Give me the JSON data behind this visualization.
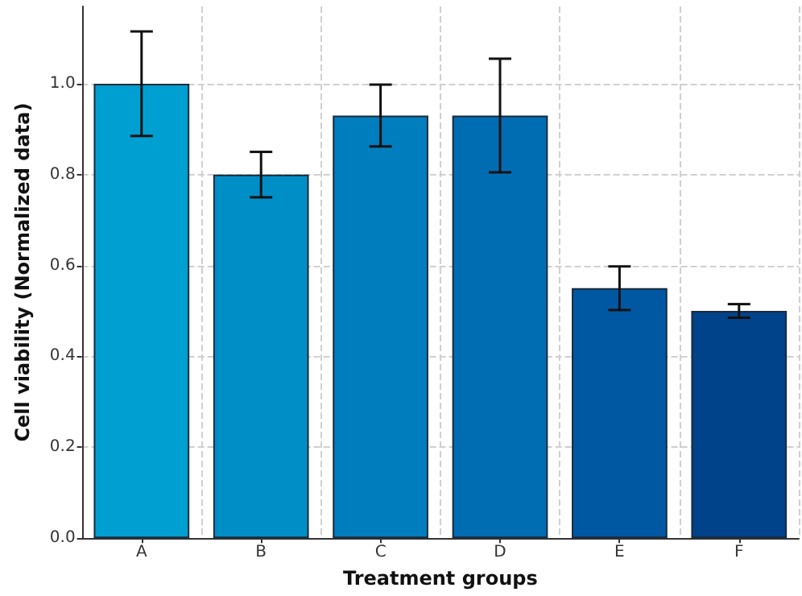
{
  "chart_data": {
    "type": "bar",
    "xlabel": "Treatment groups",
    "ylabel": "Cell viability (Normalized data)",
    "categories": [
      "A",
      "B",
      "C",
      "D",
      "E",
      "F"
    ],
    "values": [
      1.0,
      0.8,
      0.93,
      0.93,
      0.55,
      0.5
    ],
    "errors": [
      0.115,
      0.05,
      0.068,
      0.125,
      0.048,
      0.015
    ],
    "colors": [
      "#009fd1",
      "#008ec7",
      "#007dbd",
      "#006db3",
      "#0058a3",
      "#00438a"
    ],
    "ylim": [
      0,
      1.17
    ],
    "yticks": [
      {
        "value": 0,
        "label": "0.0"
      },
      0.2,
      0.4,
      0.6,
      0.8,
      {
        "value": 1,
        "label": "1.0"
      }
    ],
    "grid": true
  }
}
